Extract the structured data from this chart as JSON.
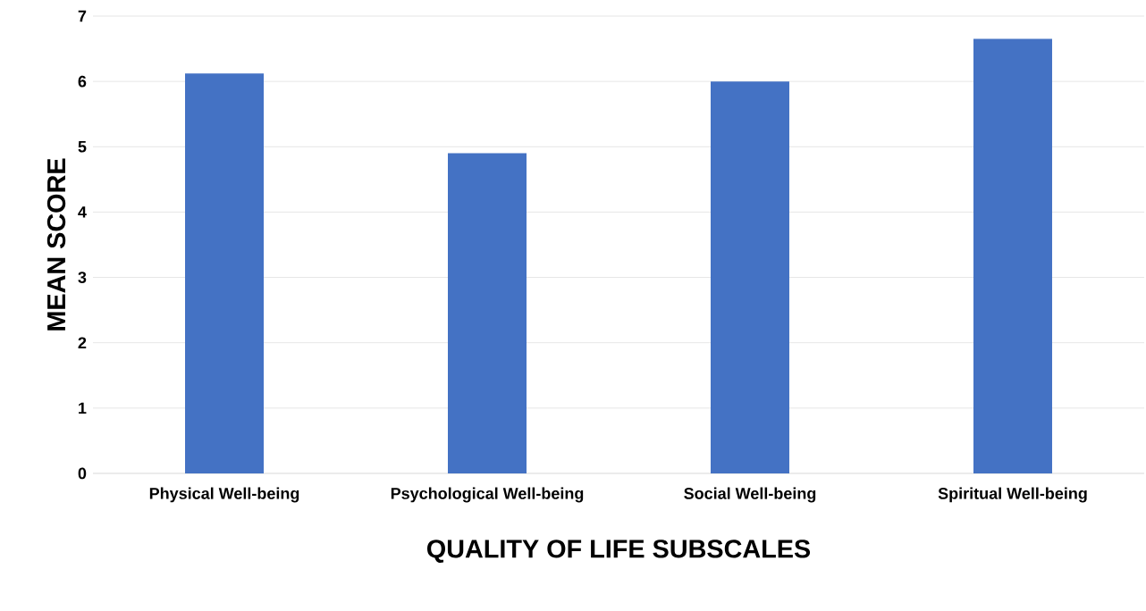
{
  "chart_data": {
    "type": "bar",
    "xlabel": "QUALITY OF LIFE SUBSCALES",
    "ylabel": "MEAN SCORE",
    "categories": [
      "Physical Well-being",
      "Psychological Well-being",
      "Social Well-being",
      "Spiritual Well-being"
    ],
    "values": [
      6.12,
      4.9,
      6.0,
      6.65
    ],
    "color": "#4472c4",
    "ylim": [
      0,
      7
    ],
    "yticks": [
      0,
      1,
      2,
      3,
      4,
      5,
      6,
      7
    ],
    "grid": "y"
  }
}
